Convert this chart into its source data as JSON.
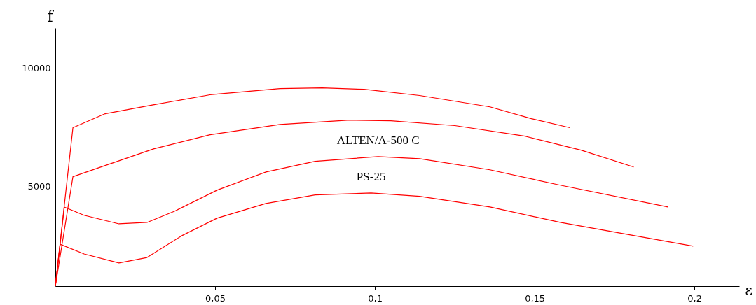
{
  "chart_data": {
    "type": "line",
    "xlabel": "ε",
    "ylabel": "f",
    "xlim": [
      0,
      0.214
    ],
    "ylim": [
      800,
      11700
    ],
    "xticks": [
      {
        "value": 0.05,
        "label": "0,05"
      },
      {
        "value": 0.1,
        "label": "0,1"
      },
      {
        "value": 0.15,
        "label": "0,15"
      },
      {
        "value": 0.2,
        "label": "0,2"
      }
    ],
    "yticks": [
      5000,
      10000
    ],
    "grid": false,
    "marker": "none",
    "line_style": "solid",
    "series": [
      {
        "color": "#ff0000",
        "x": [
          0,
          0.0055,
          0.0156,
          0.0309,
          0.0484,
          0.0703,
          0.0835,
          0.0966,
          0.114,
          0.136,
          0.149,
          0.161
        ],
        "values": [
          800,
          7490,
          8080,
          8460,
          8880,
          9140,
          9170,
          9110,
          8850,
          8370,
          7870,
          7490
        ]
      },
      {
        "color": "#ff0000",
        "x": [
          0,
          0.0055,
          0.0156,
          0.0309,
          0.0484,
          0.0703,
          0.0922,
          0.105,
          0.125,
          0.147,
          0.1645,
          0.181
        ],
        "values": [
          800,
          5420,
          5890,
          6600,
          7190,
          7630,
          7810,
          7780,
          7580,
          7130,
          6540,
          5830
        ]
      },
      {
        "name": "ALTEN/A-500 C",
        "color": "#ff0000",
        "x": [
          0,
          0.0028,
          0.009,
          0.0199,
          0.0287,
          0.0374,
          0.0506,
          0.0659,
          0.0813,
          0.101,
          0.114,
          0.136,
          0.158,
          0.1917
        ],
        "values": [
          800,
          4140,
          3790,
          3430,
          3490,
          3970,
          4850,
          5620,
          6070,
          6270,
          6180,
          5710,
          5060,
          4140
        ]
      },
      {
        "name": "PS-25",
        "color": "#ff0000",
        "x": [
          0,
          0.0015,
          0.009,
          0.0199,
          0.0287,
          0.0396,
          0.0506,
          0.0659,
          0.0813,
          0.0988,
          0.114,
          0.136,
          0.158,
          0.1996
        ],
        "values": [
          800,
          2570,
          2160,
          1780,
          2010,
          2930,
          3670,
          4290,
          4650,
          4730,
          4590,
          4140,
          3490,
          2490
        ]
      }
    ]
  }
}
